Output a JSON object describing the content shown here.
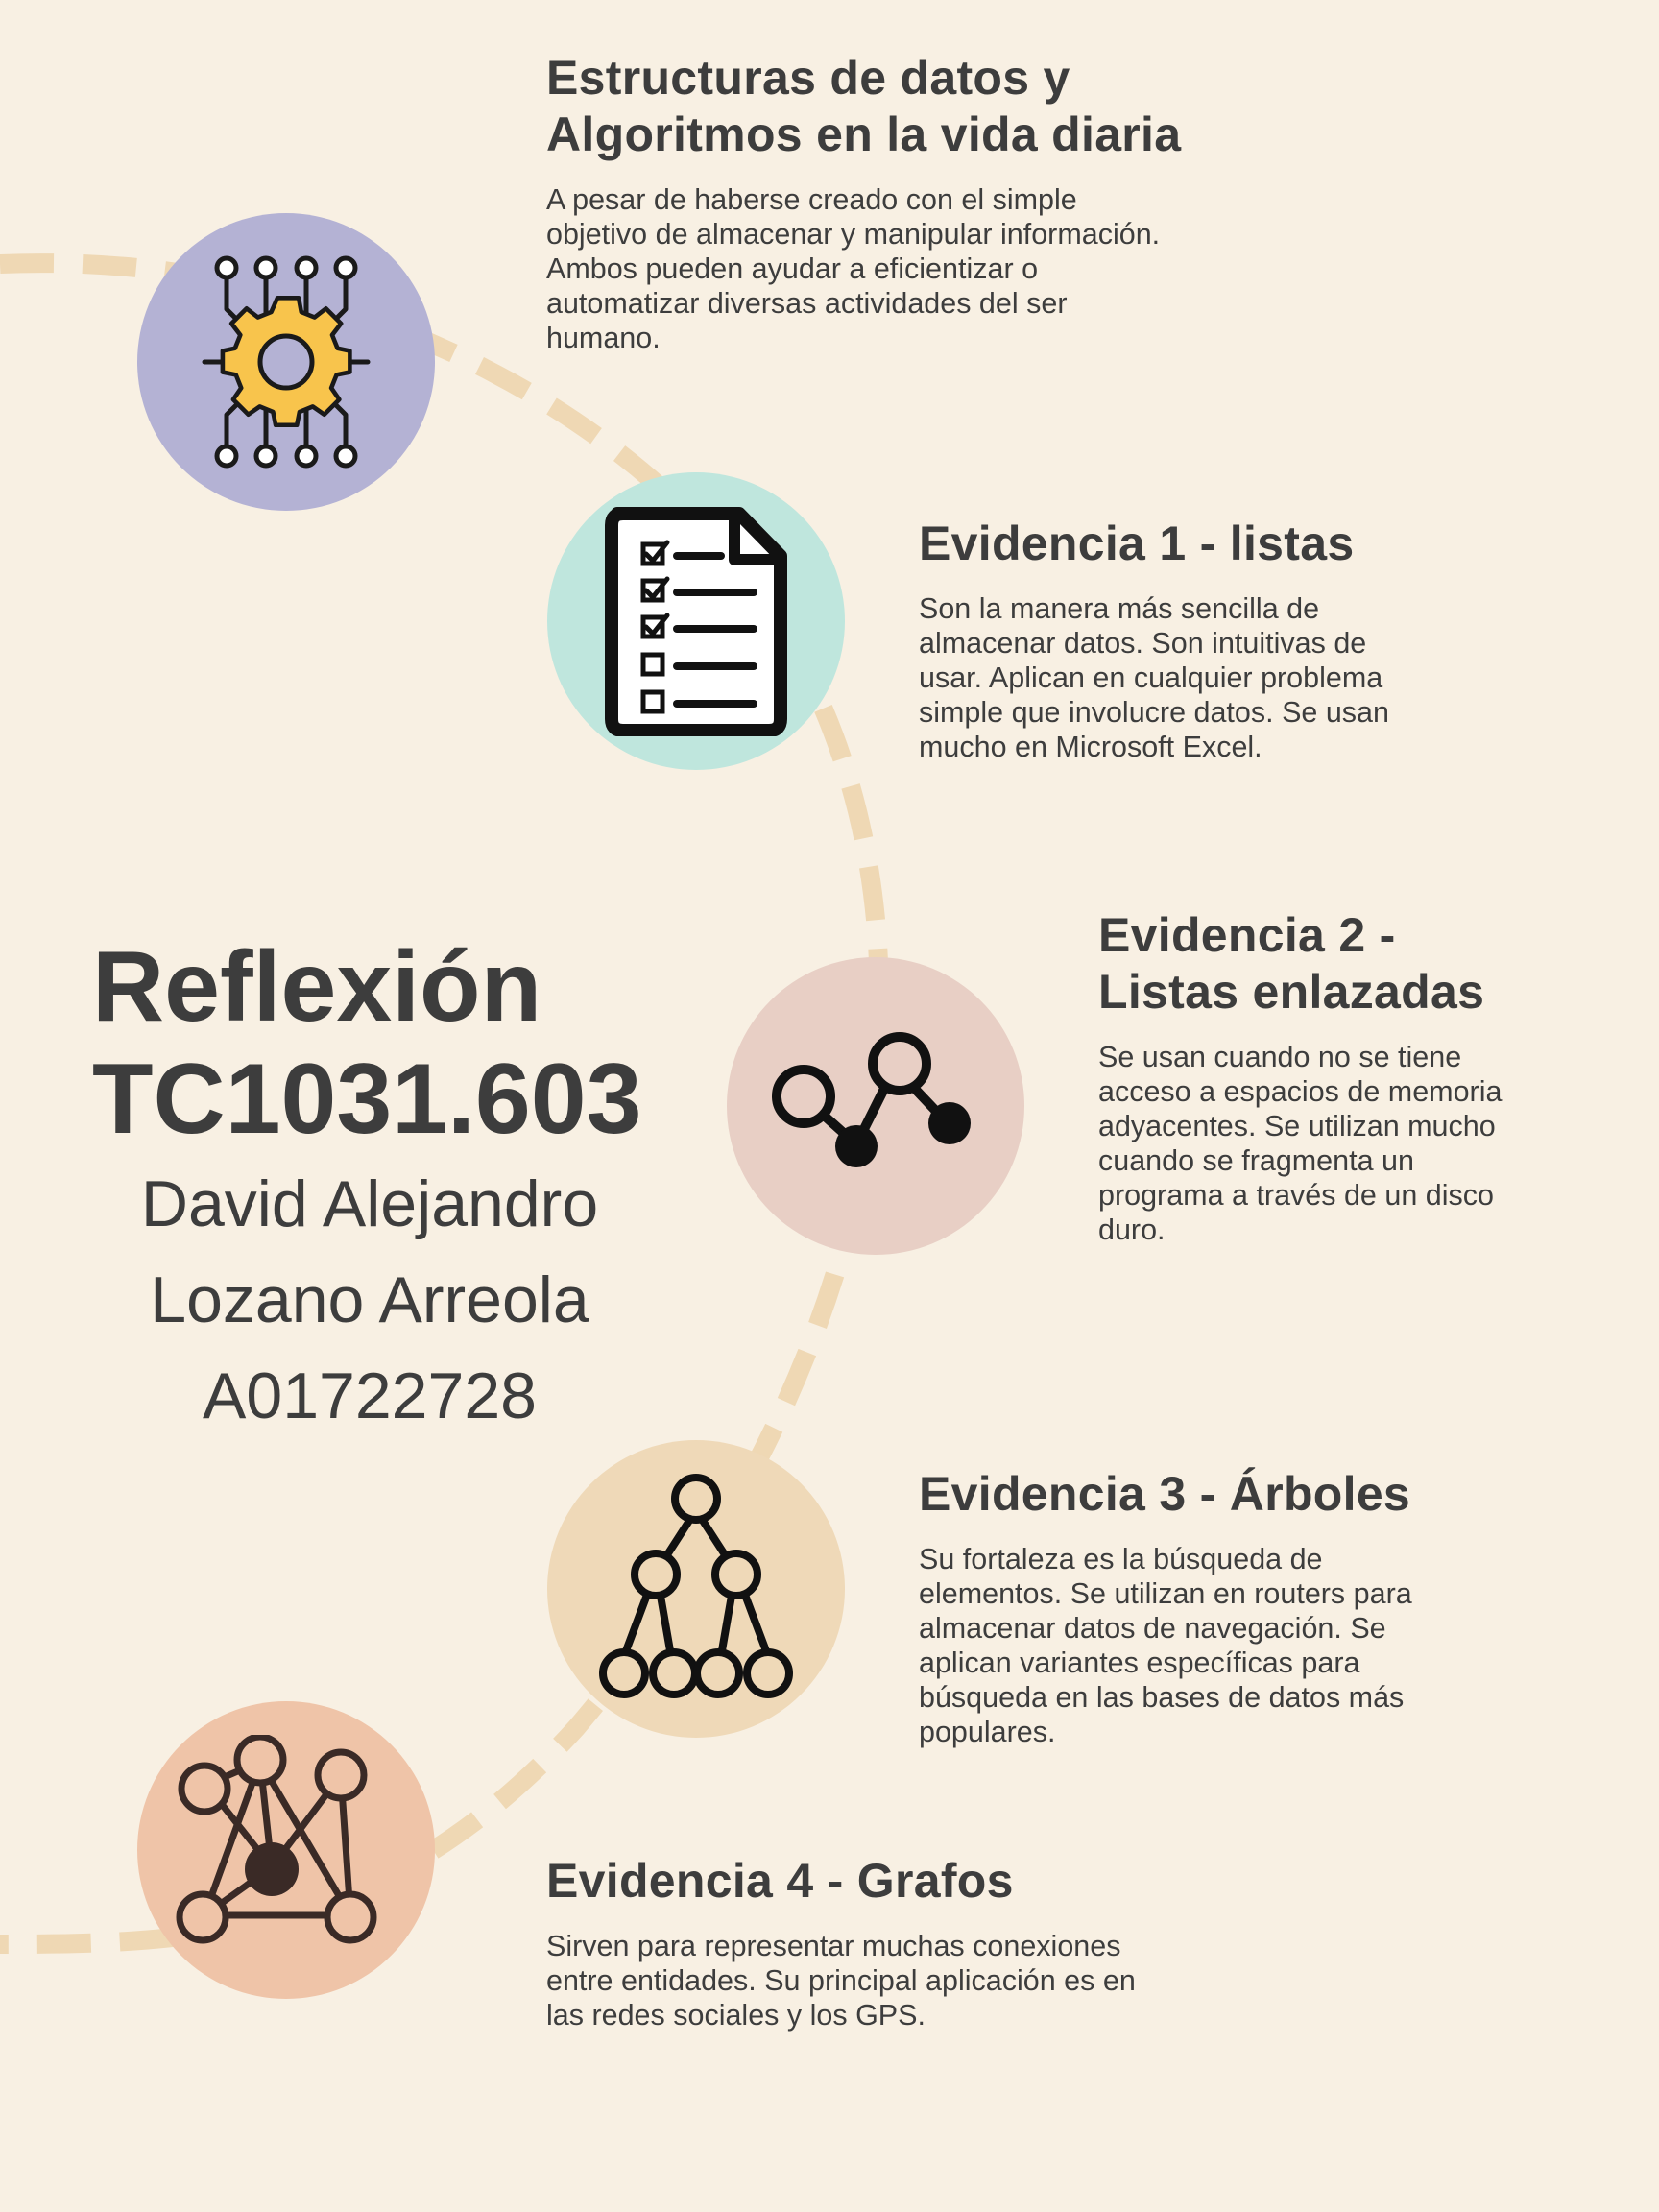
{
  "colors": {
    "background": "#f8f0e3",
    "path": "#efd8b4",
    "text": "#3d3d3d",
    "circle_algorithms": "#b4b2d4",
    "circle_lists": "#bfe6dd",
    "circle_linked_lists": "#e8cfc5",
    "circle_trees": "#efd9b8",
    "circle_graphs": "#efc4a8",
    "gear": "#f8c44c"
  },
  "intro": {
    "title_line1": "Estructuras de datos y",
    "title_line2": "Algoritmos en la vida diaria",
    "body": "A pesar de haberse creado con el simple objetivo de almacenar y manipular información. Ambos pueden ayudar a eficientizar o automatizar diversas actividades del ser humano.",
    "icon": "gear-circuit-icon"
  },
  "hero": {
    "title_line1": "Reflexión",
    "title_line2": "TC1031.603",
    "name_line1": "David Alejandro",
    "name_line2": "Lozano Arreola",
    "id": "A01722728"
  },
  "evidences": [
    {
      "title": "Evidencia 1 - listas",
      "body": "Son la manera más sencilla de almacenar datos. Son intuitivas de usar. Aplican en cualquier problema simple que involucre datos. Se usan mucho en Microsoft Excel.",
      "icon": "checklist-document-icon"
    },
    {
      "title_line1": "Evidencia 2 -",
      "title_line2": "Listas enlazadas",
      "body": "Se usan cuando no se tiene acceso a espacios de memoria adyacentes. Se utilizan mucho cuando se fragmenta un programa a través de un disco duro.",
      "icon": "linked-nodes-icon"
    },
    {
      "title": "Evidencia 3 - Árboles",
      "body": "Su fortaleza es la búsqueda de elementos. Se utilizan en routers para almacenar datos de navegación. Se aplican variantes específicas para búsqueda en las bases de datos más populares.",
      "icon": "tree-icon"
    },
    {
      "title": "Evidencia 4 - Grafos",
      "body": "Sirven para representar muchas conexiones entre entidades. Su principal aplicación es en las redes sociales y los GPS.",
      "icon": "graph-network-icon"
    }
  ]
}
